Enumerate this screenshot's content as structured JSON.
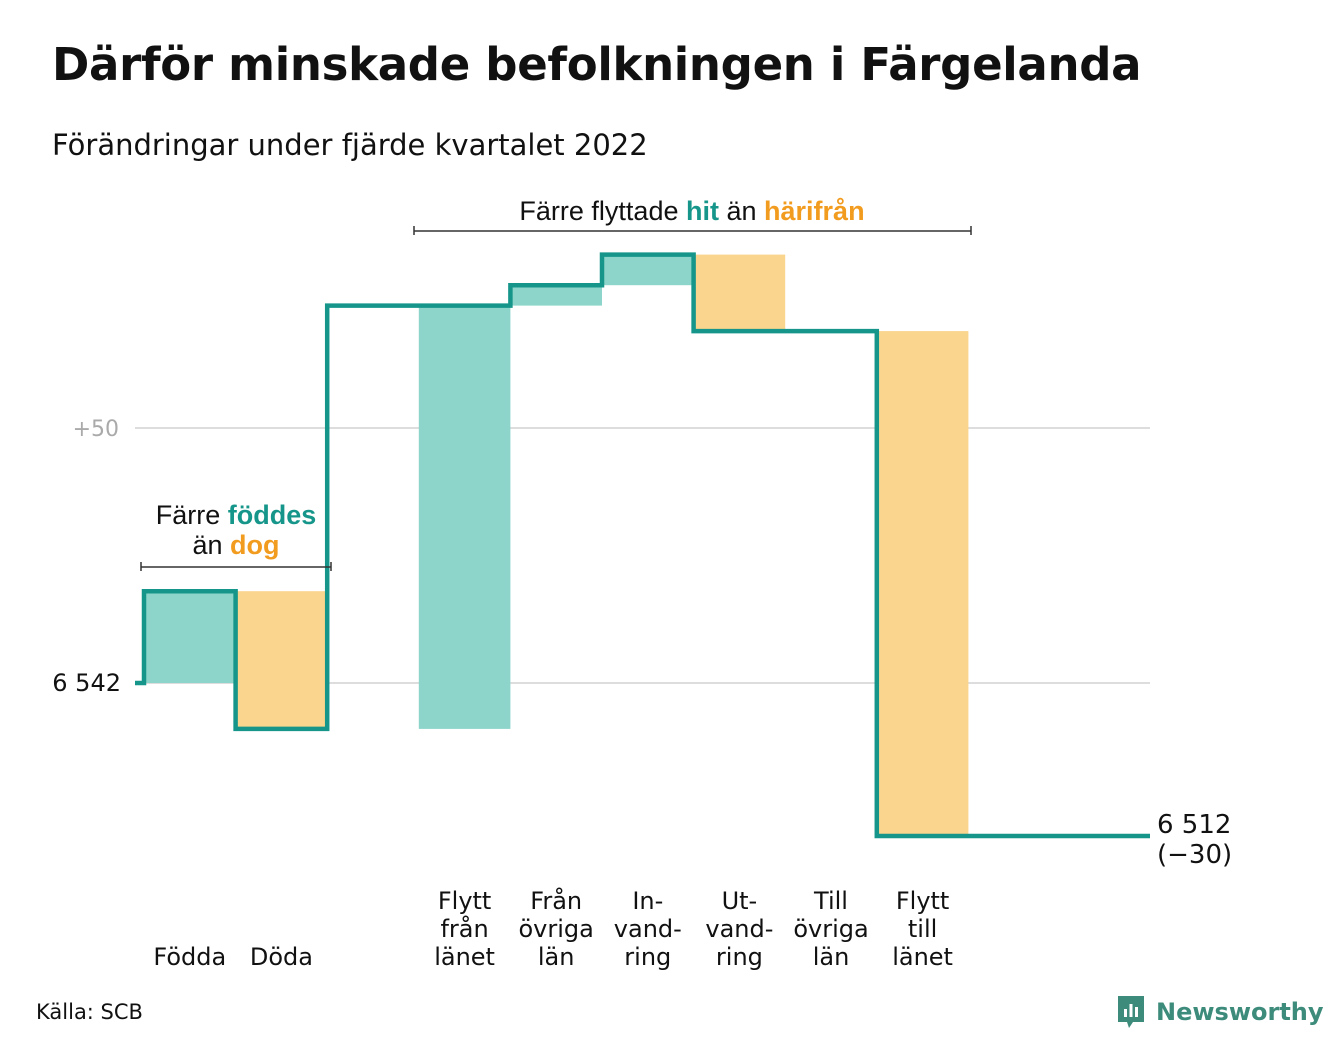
{
  "title": "Därför minskade befolkningen i Färgelanda",
  "subtitle": "Förändringar under fjärde kvartalet 2022",
  "source": "Källa: SCB",
  "brand": "Newsworthy",
  "colors": {
    "increase": "#8dd5ca",
    "decrease": "#fad58d",
    "line": "#16968a",
    "accent_teal": "#16968a",
    "accent_orange": "#f29c1f",
    "grid": "#dddddd",
    "tick_gray": "#aaaaaa",
    "logo": "#3d8b7b"
  },
  "annotations": {
    "births": {
      "line1_pre": "Färre ",
      "line1_hl": "föddes",
      "line2_pre": "än ",
      "line2_hl": "dog"
    },
    "migration": {
      "pre": "Färre flyttade ",
      "hl1": "hit",
      "mid": " än ",
      "hl2": "härifrån"
    }
  },
  "chart_data": {
    "type": "waterfall",
    "title": "Därför minskade befolkningen i Färgelanda",
    "subtitle": "Förändringar under fjärde kvartalet 2022",
    "start_value": 6542,
    "start_label": "6 542",
    "end_value": 6512,
    "end_label": "6 512",
    "change_label": "(−30)",
    "y_tick_label": "+50",
    "y_tick_offset": 50,
    "steps": [
      {
        "label_lines": [
          "Födda"
        ],
        "change": 18
      },
      {
        "label_lines": [
          "Döda"
        ],
        "change": -27
      },
      {
        "label_lines": [
          "Flytt",
          "från",
          "länet"
        ],
        "change": 83
      },
      {
        "label_lines": [
          "Från",
          "övriga",
          "län"
        ],
        "change": 4
      },
      {
        "label_lines": [
          "In-",
          "vand-",
          "ring"
        ],
        "change": 6
      },
      {
        "label_lines": [
          "Ut-",
          "vand-",
          "ring"
        ],
        "change": -15
      },
      {
        "label_lines": [
          "Till",
          "övriga",
          "län"
        ],
        "change": 0
      },
      {
        "label_lines": [
          "Flytt",
          "till",
          "länet"
        ],
        "change": -99
      }
    ],
    "step_order_drawn": [
      "Födda",
      "Döda",
      "Flytt från länet",
      "Från övriga län",
      "In-vand-ring",
      "Ut-vand-ring",
      "Till övriga län",
      "Flytt till länet"
    ]
  }
}
